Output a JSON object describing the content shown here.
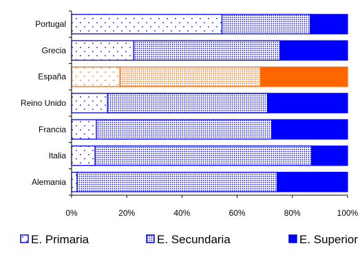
{
  "chart_data": {
    "type": "bar",
    "orientation": "horizontal",
    "stacked": true,
    "categories": [
      "Portugal",
      "Grecia",
      "España",
      "Reino Unido",
      "Francia",
      "Italia",
      "Alemania"
    ],
    "series": [
      {
        "name": "E. Primaria",
        "values": [
          54.5,
          22.5,
          17.5,
          13,
          9,
          8.5,
          2
        ],
        "pattern": "sparse-dots"
      },
      {
        "name": "E. Secundaria",
        "values": [
          32,
          53,
          51,
          58,
          63.5,
          78.5,
          72.5
        ],
        "pattern": "dense-dots"
      },
      {
        "name": "E. Superior",
        "values": [
          13.5,
          24.5,
          31.5,
          29,
          27.5,
          13,
          25.5
        ],
        "pattern": "solid"
      }
    ],
    "highlight_category": "España",
    "colors": {
      "main": "#0000ff",
      "highlight": "#ff6600"
    },
    "x_ticks": [
      "0%",
      "20%",
      "40%",
      "60%",
      "80%",
      "100%"
    ],
    "xlim": [
      0,
      100
    ],
    "legend_position": "bottom",
    "grid": false
  }
}
